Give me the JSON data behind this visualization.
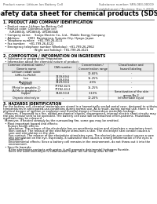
{
  "title": "Safety data sheet for chemical products (SDS)",
  "header_left": "Product name: Lithium Ion Battery Cell",
  "header_right_l1": "Substance number: SRS-083-00019",
  "header_right_l2": "Establishment / Revision: Dec.1.2016",
  "section1_title": "1. PRODUCT AND COMPANY IDENTIFICATION",
  "section1_lines": [
    "  • Product name: Lithium Ion Battery Cell",
    "  • Product code: Cylindrical-type cell",
    "       (UR18650J, UR18650J, UR18650A)",
    "  • Company name:    Sanyo Electric Co., Ltd.,  Mobile Energy Company",
    "  • Address:         2001  Kaminaizen, Sumoto-City, Hyogo, Japan",
    "  • Telephone number:   +81-799-26-4111",
    "  • Fax number:    +81-799-26-4122",
    "  • Emergency telephone number (Weekday): +81-799-26-2962",
    "                                   (Night and holiday): +81-799-26-4121"
  ],
  "section2_title": "2. COMPOSITION / INFORMATION ON INGREDIENTS",
  "section2_sub1": "  • Substance or preparation: Preparation",
  "section2_sub2": "  • Information about the chemical nature of product:",
  "tbl_hdr": [
    "Common chemical name /\nGeneric name",
    "CAS number",
    "Concentration /\nConcentration range",
    "Classification and\nhazard labeling"
  ],
  "tbl_rows": [
    [
      "Lithium cobalt oxide\n(LiMn-Co-PbO4)",
      "-",
      "30-60%",
      "-"
    ],
    [
      "Iron",
      "7439-89-6\n7439-89-6",
      "15-25%",
      "-"
    ],
    [
      "Aluminum",
      "7429-90-5",
      "2-5%",
      "-"
    ],
    [
      "Graphite\n(Metal in graphite-1)\n(AI-Mo in graphite-1)",
      "77782-42-5\n77782-43-2",
      "15-25%",
      "-"
    ],
    [
      "Copper",
      "7440-50-8",
      "3-10%",
      "Sensitization of the skin\ngroup No.2"
    ],
    [
      "Organic electrolyte",
      "-",
      "10-20%",
      "Inflammable liquid"
    ]
  ],
  "section3_title": "3. HAZARDS IDENTIFICATION",
  "section3_para": [
    "For the battery cell, chemical materials are stored in a hermetically sealed metal case, designed to withstand",
    "temperatures in anticipated-use-conditions during normal use. As a result, during normal use, there is no",
    "physical danger of ignition or explosion and thermal danger of hazardous materials leakage.",
    "  However, if exposed to a fire, added mechanical shocks, decomposed, internal electric short-circuity may cause",
    "the gas release vent to be operated. The battery cell case will be breached of fire-patterns. Hazardous",
    "materials may be released.",
    "  Moreover, if heated strongly by the surrounding fire, some gas may be emitted."
  ],
  "section3_sub1": "  • Most important hazard and effects:",
  "section3_sub1a": "     Human health effects:",
  "section3_body1": [
    "      Inhalation: The release of the electrolyte has an anesthesia action and stimulates a respiratory tract.",
    "      Skin contact: The release of the electrolyte stimulates a skin. The electrolyte skin contact causes a",
    "      sore and stimulation on the skin.",
    "      Eye contact: The release of the electrolyte stimulates eyes. The electrolyte eye contact causes a sore",
    "      and stimulation on the eye. Especially, a substance that causes a strong inflammation of the eyes is",
    "      contained.",
    "      Environmental effects: Since a battery cell remains in the environment, do not throw out it into the",
    "      environment."
  ],
  "section3_sub2": "  • Specific hazards:",
  "section3_body2": [
    "      If the electrolyte contacts with water, it will generate detrimental hydrogen fluoride.",
    "      Since the used electrolyte is inflammable liquid, do not bring close to fire."
  ],
  "bg_color": "#ffffff",
  "text_color": "#000000",
  "line_color": "#999999",
  "table_bg_hdr": "#e8e8e8",
  "table_line": "#888888"
}
